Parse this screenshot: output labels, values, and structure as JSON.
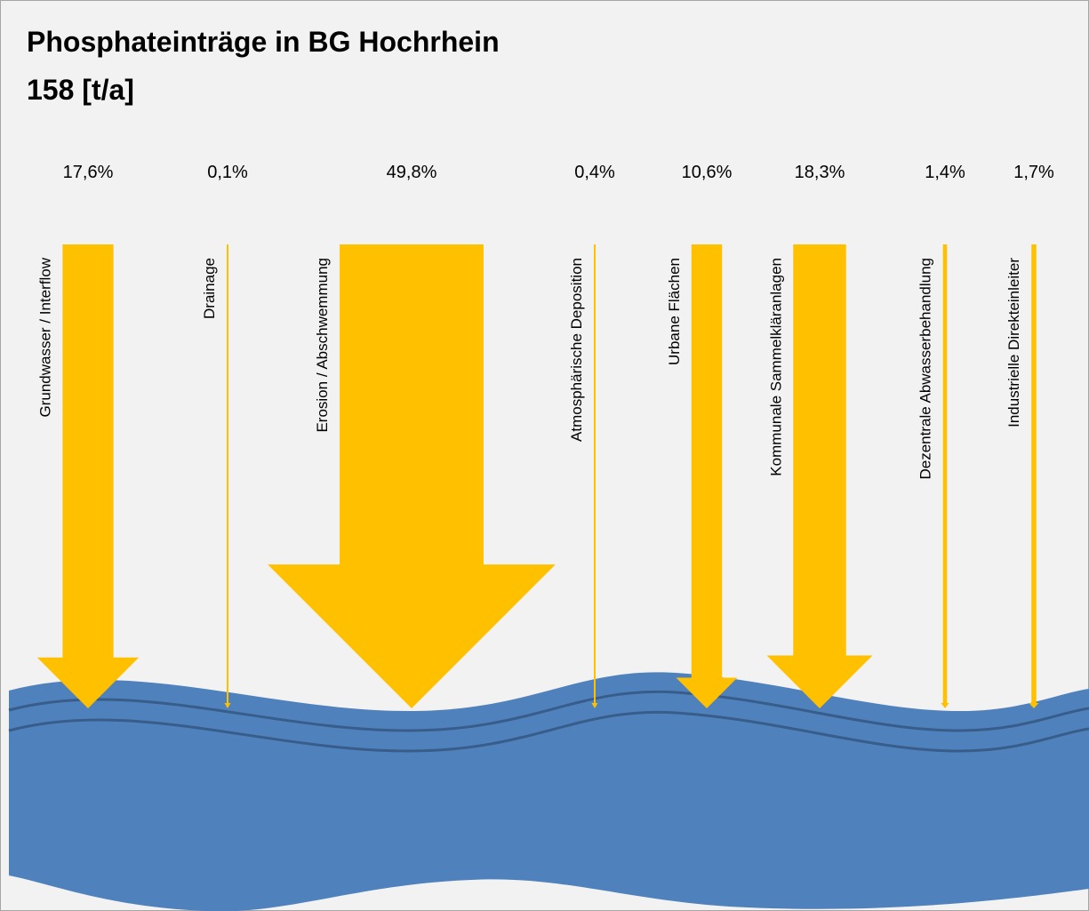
{
  "chart_data": {
    "type": "flow",
    "title": "Phosphateinträge in BG Hochrhein",
    "subtitle": "158 [t/a]",
    "categories": [
      "Grundwasser / Interflow",
      "Drainage",
      "Erosion / Abschwemmung",
      "Atmosphärische Deposition",
      "Urbane Flächen",
      "Kommunale Sammelkläranlagen",
      "Dezentrale Abwasserbehandlung",
      "Industrielle Direkteinleiter"
    ],
    "values": [
      17.6,
      0.1,
      49.8,
      0.4,
      10.6,
      18.3,
      1.4,
      1.7
    ],
    "value_labels": [
      "17,6%",
      "0,1%",
      "49,8%",
      "0,4%",
      "10,6%",
      "18,3%",
      "1,4%",
      "1,7%"
    ],
    "color": "#ffc000"
  }
}
